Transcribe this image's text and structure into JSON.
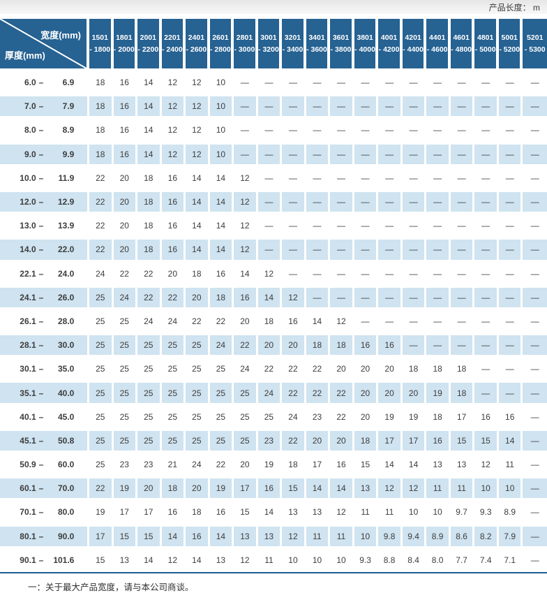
{
  "top_bar": {
    "product_length_label": "产品长度： m"
  },
  "corner": {
    "width_label": "宽度(mm)",
    "thickness_label": "厚度(mm)"
  },
  "footer": {
    "note": "一：关于最大产品宽度，请与本公司商谈。"
  },
  "colors": {
    "header_blue": "#266292",
    "row_stripe_blue": "#cfe3f0",
    "rule_blue": "#1f5e90",
    "separator_white": "#ffffff"
  },
  "chart_data": {
    "type": "table",
    "title": "产品长度： m",
    "col_header_unit": "宽度(mm)",
    "row_header_unit": "厚度(mm)",
    "dash_symbol": "—",
    "columns": [
      "1501 - 1800",
      "1801 - 2000",
      "2001 - 2200",
      "2201 - 2400",
      "2401 - 2600",
      "2601 - 2800",
      "2801 - 3000",
      "3001 - 3200",
      "3201 - 3400",
      "3401 - 3600",
      "3601 - 3800",
      "3801 - 4000",
      "4001 - 4200",
      "4201 - 4400",
      "4401 - 4600",
      "4601 - 4800",
      "4801 - 5000",
      "5001 - 5200",
      "5201 - 5300"
    ],
    "rows": [
      {
        "min": "6.0",
        "max": "6.9",
        "values": [
          "18",
          "16",
          "14",
          "12",
          "12",
          "10",
          "—",
          "—",
          "—",
          "—",
          "—",
          "—",
          "—",
          "—",
          "—",
          "—",
          "—",
          "—",
          "—"
        ]
      },
      {
        "min": "7.0",
        "max": "7.9",
        "values": [
          "18",
          "16",
          "14",
          "12",
          "12",
          "10",
          "—",
          "—",
          "—",
          "—",
          "—",
          "—",
          "—",
          "—",
          "—",
          "—",
          "—",
          "—",
          "—"
        ]
      },
      {
        "min": "8.0",
        "max": "8.9",
        "values": [
          "18",
          "16",
          "14",
          "12",
          "12",
          "10",
          "—",
          "—",
          "—",
          "—",
          "—",
          "—",
          "—",
          "—",
          "—",
          "—",
          "—",
          "—",
          "—"
        ]
      },
      {
        "min": "9.0",
        "max": "9.9",
        "values": [
          "18",
          "16",
          "14",
          "12",
          "12",
          "10",
          "—",
          "—",
          "—",
          "—",
          "—",
          "—",
          "—",
          "—",
          "—",
          "—",
          "—",
          "—",
          "—"
        ]
      },
      {
        "min": "10.0",
        "max": "11.9",
        "values": [
          "22",
          "20",
          "18",
          "16",
          "14",
          "14",
          "12",
          "—",
          "—",
          "—",
          "—",
          "—",
          "—",
          "—",
          "—",
          "—",
          "—",
          "—",
          "—"
        ]
      },
      {
        "min": "12.0",
        "max": "12.9",
        "values": [
          "22",
          "20",
          "18",
          "16",
          "14",
          "14",
          "12",
          "—",
          "—",
          "—",
          "—",
          "—",
          "—",
          "—",
          "—",
          "—",
          "—",
          "—",
          "—"
        ]
      },
      {
        "min": "13.0",
        "max": "13.9",
        "values": [
          "22",
          "20",
          "18",
          "16",
          "14",
          "14",
          "12",
          "—",
          "—",
          "—",
          "—",
          "—",
          "—",
          "—",
          "—",
          "—",
          "—",
          "—",
          "—"
        ]
      },
      {
        "min": "14.0",
        "max": "22.0",
        "values": [
          "22",
          "20",
          "18",
          "16",
          "14",
          "14",
          "12",
          "—",
          "—",
          "—",
          "—",
          "—",
          "—",
          "—",
          "—",
          "—",
          "—",
          "—",
          "—"
        ]
      },
      {
        "min": "22.1",
        "max": "24.0",
        "values": [
          "24",
          "22",
          "22",
          "20",
          "18",
          "16",
          "14",
          "12",
          "—",
          "—",
          "—",
          "—",
          "—",
          "—",
          "—",
          "—",
          "—",
          "—",
          "—"
        ]
      },
      {
        "min": "24.1",
        "max": "26.0",
        "values": [
          "25",
          "24",
          "22",
          "22",
          "20",
          "18",
          "16",
          "14",
          "12",
          "—",
          "—",
          "—",
          "—",
          "—",
          "—",
          "—",
          "—",
          "—",
          "—"
        ]
      },
      {
        "min": "26.1",
        "max": "28.0",
        "values": [
          "25",
          "25",
          "24",
          "24",
          "22",
          "22",
          "20",
          "18",
          "16",
          "14",
          "12",
          "—",
          "—",
          "—",
          "—",
          "—",
          "—",
          "—",
          "—"
        ]
      },
      {
        "min": "28.1",
        "max": "30.0",
        "values": [
          "25",
          "25",
          "25",
          "25",
          "25",
          "24",
          "22",
          "20",
          "20",
          "18",
          "18",
          "16",
          "16",
          "—",
          "—",
          "—",
          "—",
          "—",
          "—"
        ]
      },
      {
        "min": "30.1",
        "max": "35.0",
        "values": [
          "25",
          "25",
          "25",
          "25",
          "25",
          "25",
          "24",
          "22",
          "22",
          "22",
          "20",
          "20",
          "20",
          "18",
          "18",
          "18",
          "—",
          "—",
          "—"
        ]
      },
      {
        "min": "35.1",
        "max": "40.0",
        "values": [
          "25",
          "25",
          "25",
          "25",
          "25",
          "25",
          "25",
          "24",
          "22",
          "22",
          "22",
          "20",
          "20",
          "20",
          "19",
          "18",
          "—",
          "—",
          "—"
        ]
      },
      {
        "min": "40.1",
        "max": "45.0",
        "values": [
          "25",
          "25",
          "25",
          "25",
          "25",
          "25",
          "25",
          "25",
          "24",
          "23",
          "22",
          "20",
          "19",
          "19",
          "18",
          "17",
          "16",
          "16",
          "—"
        ]
      },
      {
        "min": "45.1",
        "max": "50.8",
        "values": [
          "25",
          "25",
          "25",
          "25",
          "25",
          "25",
          "25",
          "23",
          "22",
          "20",
          "20",
          "18",
          "17",
          "17",
          "16",
          "15",
          "15",
          "14",
          "—"
        ]
      },
      {
        "min": "50.9",
        "max": "60.0",
        "values": [
          "25",
          "23",
          "23",
          "21",
          "24",
          "22",
          "20",
          "19",
          "18",
          "17",
          "16",
          "15",
          "14",
          "14",
          "13",
          "13",
          "12",
          "11",
          "—"
        ]
      },
      {
        "min": "60.1",
        "max": "70.0",
        "values": [
          "22",
          "19",
          "20",
          "18",
          "20",
          "19",
          "17",
          "16",
          "15",
          "14",
          "14",
          "13",
          "12",
          "12",
          "11",
          "11",
          "10",
          "10",
          "—"
        ]
      },
      {
        "min": "70.1",
        "max": "80.0",
        "values": [
          "19",
          "17",
          "17",
          "16",
          "18",
          "16",
          "15",
          "14",
          "13",
          "13",
          "12",
          "11",
          "11",
          "10",
          "10",
          "9.7",
          "9.3",
          "8.9",
          "—"
        ]
      },
      {
        "min": "80.1",
        "max": "90.0",
        "values": [
          "17",
          "15",
          "15",
          "14",
          "16",
          "14",
          "13",
          "13",
          "12",
          "11",
          "11",
          "10",
          "9.8",
          "9.4",
          "8.9",
          "8.6",
          "8.2",
          "7.9",
          "—"
        ]
      },
      {
        "min": "90.1",
        "max": "101.6",
        "values": [
          "15",
          "13",
          "14",
          "12",
          "14",
          "13",
          "12",
          "11",
          "10",
          "10",
          "10",
          "9.3",
          "8.8",
          "8.4",
          "8.0",
          "7.7",
          "7.4",
          "7.1",
          "—"
        ]
      }
    ]
  }
}
